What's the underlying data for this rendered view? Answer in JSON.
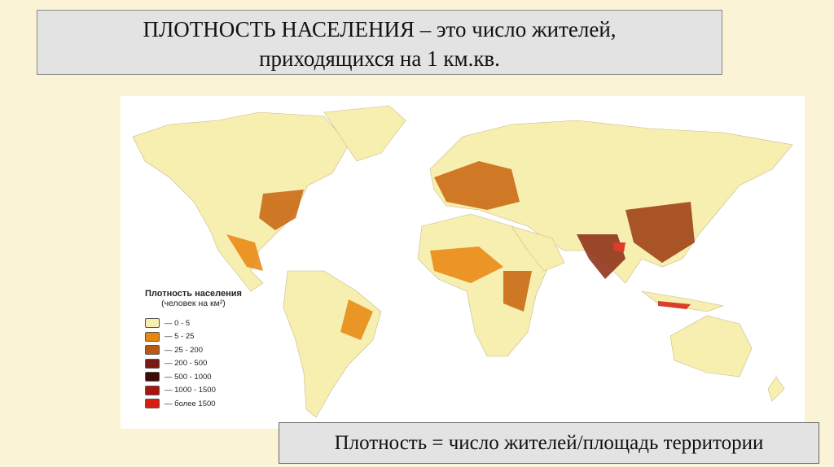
{
  "title": {
    "line1": "ПЛОТНОСТЬ НАСЕЛЕНИЯ – это число жителей,",
    "line2": "приходящихся на 1 км.кв."
  },
  "map": {
    "legend": {
      "title": "Плотность населения",
      "subtitle": "(человек на км²)",
      "items": [
        {
          "label": "— 0 - 5",
          "color": "#f7efb0"
        },
        {
          "label": "— 5 - 25",
          "color": "#e8860f"
        },
        {
          "label": "— 25 - 200",
          "color": "#b85a12"
        },
        {
          "label": "— 200 - 500",
          "color": "#7a1a12"
        },
        {
          "label": "— 500 - 1000",
          "color": "#3d0a06"
        },
        {
          "label": "— 1000 - 1500",
          "color": "#a8150e"
        },
        {
          "label": "— более 1500",
          "color": "#d81e12"
        }
      ]
    }
  },
  "formula": "Плотность = число жителей/площадь территории"
}
